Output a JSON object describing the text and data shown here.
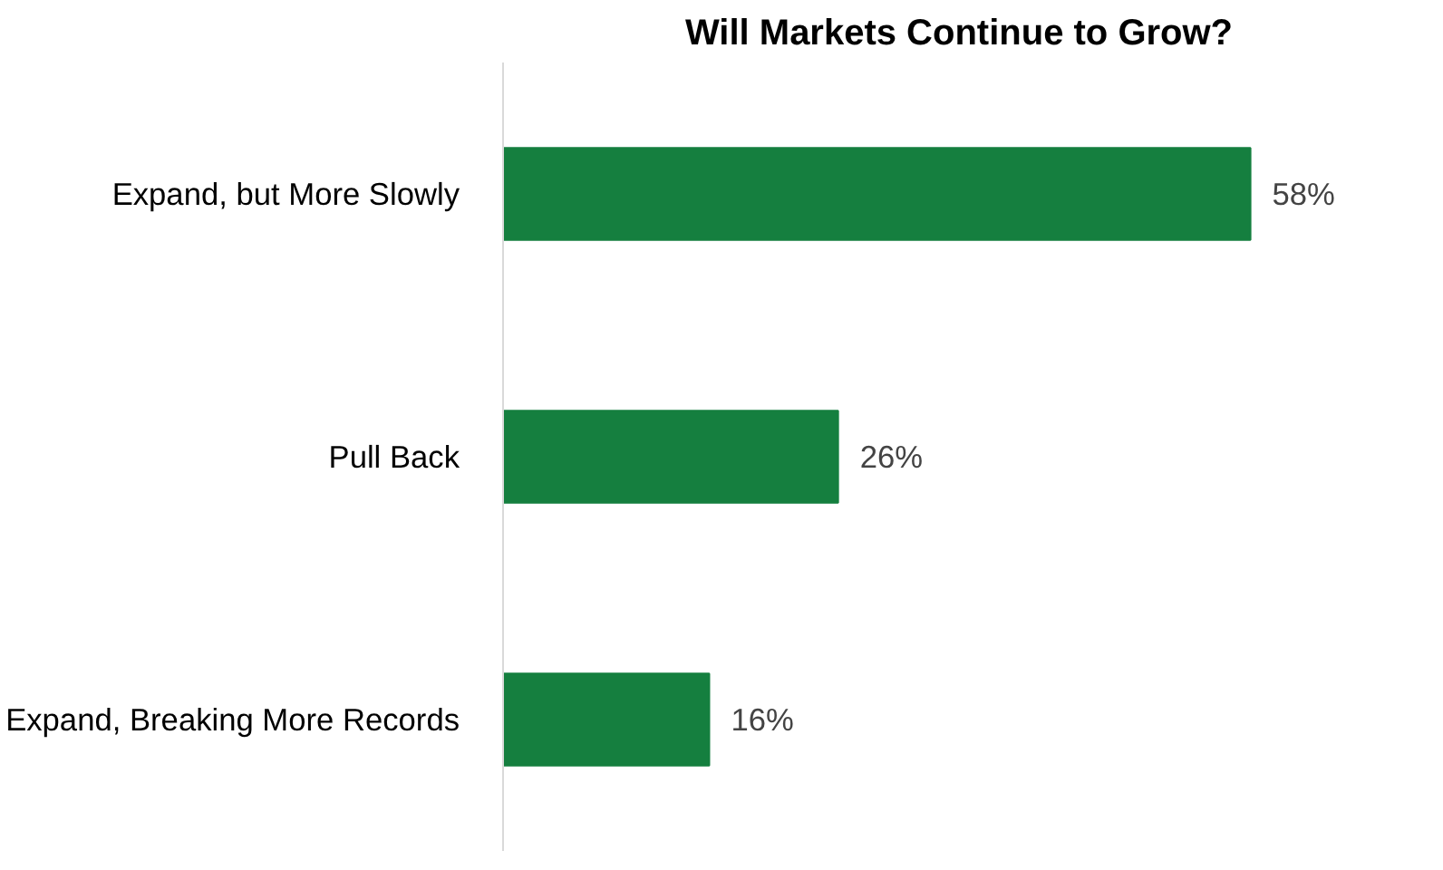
{
  "chart_data": {
    "type": "bar",
    "orientation": "horizontal",
    "title": "Will Markets Continue to Grow?",
    "categories": [
      "Expand, but More Slowly",
      "Pull Back",
      "Expand, Breaking More Records"
    ],
    "values": [
      58,
      26,
      16
    ],
    "color": "#157f3f",
    "value_labels": [
      "58%",
      "26%",
      "16%"
    ],
    "grid": false
  }
}
